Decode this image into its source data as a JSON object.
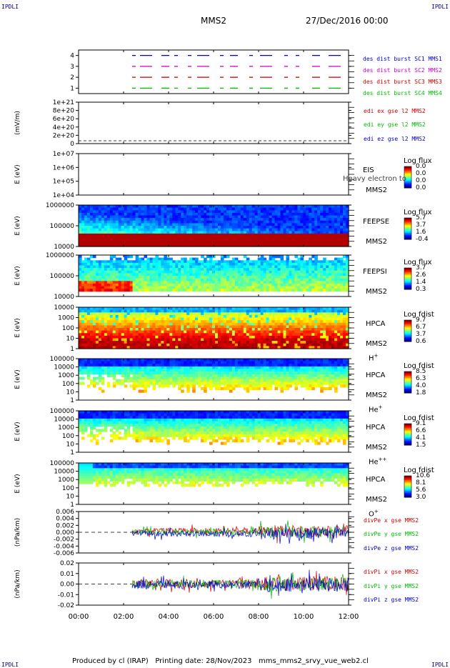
{
  "header": {
    "corner_left": "IPDLI",
    "corner_right": "IPDLI",
    "spacecraft": "MMS2",
    "date": "27/Dec/2016 00:00"
  },
  "footer": {
    "corner_left": "IPDLI",
    "corner_right": "IPDLI",
    "text": "Produced by cl (IRAP)   Printing date: 28/Nov/2023   mms_mms2_srvy_vue_web2.cl"
  },
  "chart_data": {
    "type": "spectrogram",
    "x_range": [
      "00:00",
      "12:00"
    ],
    "x_ticks": [
      "00:00",
      "02:00",
      "04:00",
      "06:00",
      "08:00",
      "10:00",
      "12:00"
    ],
    "panels": [
      {
        "id": "burst",
        "type": "line",
        "ylabel": "",
        "yticks": [
          "4",
          "3",
          "2",
          "1"
        ],
        "series": [
          {
            "name": "des dist burst SC1 MMS1",
            "color": "#0000cc",
            "level": 4
          },
          {
            "name": "des dist burst SC2 MMS2",
            "color": "#cc00cc",
            "level": 3
          },
          {
            "name": "des dist burst SC3 MMS3",
            "color": "#cc0000",
            "level": 2
          },
          {
            "name": "des dist burst SC4 MMS4",
            "color": "#00bb00",
            "level": 1
          }
        ]
      },
      {
        "id": "edi",
        "type": "line",
        "ylabel": "(mV/m)",
        "yticks": [
          "1e+21",
          "8e+20",
          "6e+20",
          "4e+20",
          "2e+20",
          "0"
        ],
        "series": [
          {
            "name": "edi ex gse l2 MMS2",
            "color": "#cc0000"
          },
          {
            "name": "edi ey gse l2 MMS2",
            "color": "#00bb00"
          },
          {
            "name": "edi ez gse l2 MMS2",
            "color": "#0000cc"
          }
        ]
      },
      {
        "id": "eis",
        "type": "heatmap",
        "ylabel": "E (eV)",
        "yticks": [
          "1e+07",
          "1e+06",
          "1e+05",
          "1e+04"
        ],
        "instrument": "EIS",
        "sc": "MMS2",
        "overlay": "Heavy electron to",
        "colorbar_title": "Log flux",
        "colorbar_ticks": [
          "0.0",
          "0.0",
          "0.0",
          "0.0"
        ]
      },
      {
        "id": "feepse",
        "type": "heatmap",
        "ylabel": "E (eV)",
        "yticks": [
          "1000000",
          "100000",
          "10000"
        ],
        "instrument": "FEEPSE",
        "sc": "MMS2",
        "colorbar_title": "Log flux",
        "colorbar_ticks": [
          "5.7",
          "3.7",
          "1.6",
          "-0.4"
        ]
      },
      {
        "id": "feepsi",
        "type": "heatmap",
        "ylabel": "E (eV)",
        "yticks": [
          "1000000",
          "100000",
          "10000"
        ],
        "instrument": "FEEPSI",
        "sc": "MMS2",
        "colorbar_title": "Log flux",
        "colorbar_ticks": [
          "3.7",
          "2.6",
          "1.4",
          "0.3"
        ]
      },
      {
        "id": "hpca_h",
        "type": "heatmap",
        "ylabel": "E (eV)",
        "yticks": [
          "10000",
          "1000",
          "100",
          "10",
          "1"
        ],
        "instrument": "HPCA",
        "sc": "MMS2",
        "species": "H",
        "charge": "+",
        "colorbar_title": "Log fdist",
        "colorbar_ticks": [
          "9.7",
          "6.7",
          "3.7",
          "0.6"
        ]
      },
      {
        "id": "hpca_he",
        "type": "heatmap",
        "ylabel": "E (eV)",
        "yticks": [
          "100000",
          "10000",
          "1000",
          "100",
          "10",
          "1"
        ],
        "instrument": "HPCA",
        "sc": "MMS2",
        "species": "He",
        "charge": "+",
        "colorbar_title": "Log fdist",
        "colorbar_ticks": [
          "8.5",
          "6.3",
          "4.0",
          "1.8"
        ]
      },
      {
        "id": "hpca_hepp",
        "type": "heatmap",
        "ylabel": "E (eV)",
        "yticks": [
          "100000",
          "10000",
          "1000",
          "100",
          "10",
          "1"
        ],
        "instrument": "HPCA",
        "sc": "MMS2",
        "species": "He",
        "charge": "++",
        "colorbar_title": "Log fdist",
        "colorbar_ticks": [
          "9.1",
          "6.6",
          "4.1",
          "1.5"
        ]
      },
      {
        "id": "hpca_o",
        "type": "heatmap",
        "ylabel": "E (eV)",
        "yticks": [
          "100000",
          "10000",
          "1000",
          "100",
          "10",
          "1"
        ],
        "instrument": "HPCA",
        "sc": "MMS2",
        "species": "O",
        "charge": "+",
        "colorbar_title": "Log fdist",
        "colorbar_ticks": [
          "10.6",
          "8.1",
          "5.6",
          "3.0"
        ]
      },
      {
        "id": "divpe",
        "type": "line",
        "ylabel": "(nPa/km)",
        "yticks": [
          "0.006",
          "0.004",
          "0.002",
          "0.000",
          "-0.002",
          "-0.004",
          "-0.006"
        ],
        "series": [
          {
            "name": "divPe x gse MMS2",
            "color": "#cc0000"
          },
          {
            "name": "divPe y gse MMS2",
            "color": "#00bb00"
          },
          {
            "name": "divPe z gse MMS2",
            "color": "#0000cc"
          }
        ]
      },
      {
        "id": "divpi",
        "type": "line",
        "ylabel": "(nPa/km)",
        "yticks": [
          "0.02",
          "0.01",
          "0.00",
          "-0.01",
          "-0.02"
        ],
        "series": [
          {
            "name": "divPi x gse MMS2",
            "color": "#cc0000"
          },
          {
            "name": "divPi y gse MMS2",
            "color": "#00bb00"
          },
          {
            "name": "divPi z gse MMS2",
            "color": "#0000cc"
          }
        ]
      }
    ]
  }
}
